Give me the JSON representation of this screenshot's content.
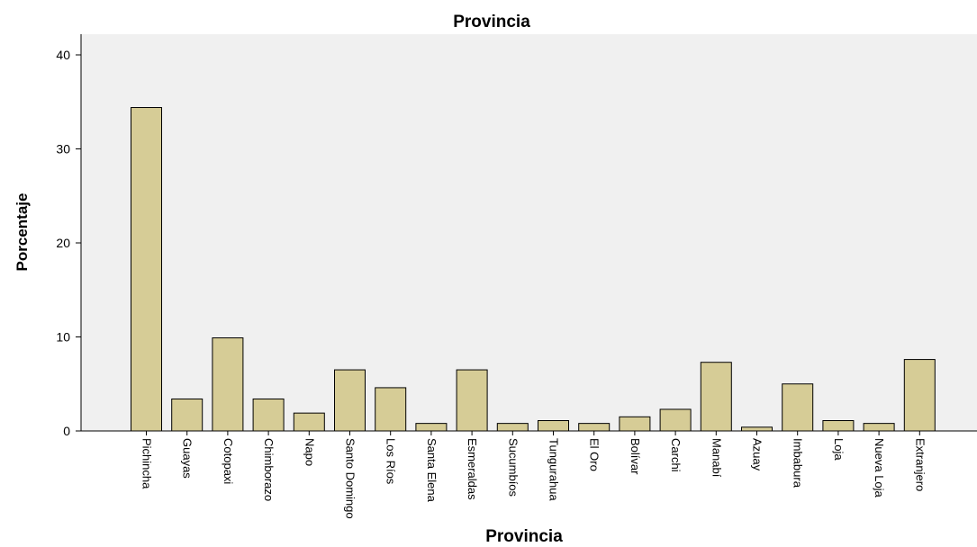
{
  "chart_data": {
    "type": "bar",
    "title": "Provincia",
    "xlabel": "Provincia",
    "ylabel": "Porcentaje",
    "ylim": [
      0,
      42
    ],
    "yticks": [
      0,
      10,
      20,
      30,
      40
    ],
    "grid": false,
    "legend": "none",
    "colors": {
      "bar": "#d6cc96",
      "plot_background": "#f0f0f0",
      "outline": "#000000"
    },
    "categories": [
      "Pichincha",
      "Guayas",
      "Cotopaxi",
      "Chimborazo",
      "Napo",
      "Santo Domingo",
      "Los Ríos",
      "Santa Elena",
      "Esmeraldas",
      "Sucumbíos",
      "Tungurahua",
      "El Oro",
      "Bolívar",
      "Carchi",
      "Manabí",
      "Azuay",
      "Imbabura",
      "Loja",
      "Nueva Loja",
      "Extranjero"
    ],
    "values": [
      34.4,
      3.4,
      9.9,
      3.4,
      1.9,
      6.5,
      4.6,
      0.8,
      6.5,
      0.8,
      1.1,
      0.8,
      1.5,
      2.3,
      7.3,
      0.4,
      5.0,
      1.1,
      0.8,
      7.6
    ]
  }
}
